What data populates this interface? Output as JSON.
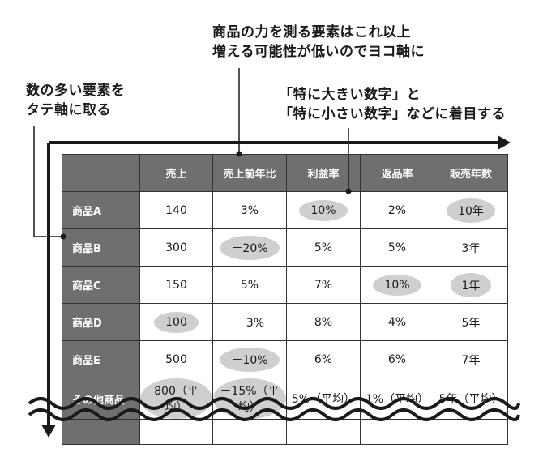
{
  "annotations": {
    "top": [
      "商品の力を測る要素はこれ以上",
      "増える可能性が低いのでヨコ軸に"
    ],
    "left": [
      "数の多い要素を",
      "タテ軸に取る"
    ],
    "right": [
      "「特に大きい数字」と",
      "「特に小さい数字」などに着目する"
    ]
  },
  "table": {
    "columns": [
      "売上",
      "売上前年比",
      "利益率",
      "返品率",
      "販売年数"
    ],
    "rows": [
      {
        "label": "商品A",
        "cells": [
          "140",
          "3%",
          "10%",
          "2%",
          "10年"
        ],
        "highlight": [
          false,
          false,
          true,
          false,
          true
        ]
      },
      {
        "label": "商品B",
        "cells": [
          "300",
          "－20%",
          "5%",
          "5%",
          "3年"
        ],
        "highlight": [
          false,
          true,
          false,
          false,
          false
        ]
      },
      {
        "label": "商品C",
        "cells": [
          "150",
          "5%",
          "7%",
          "10%",
          "1年"
        ],
        "highlight": [
          false,
          false,
          false,
          true,
          true
        ]
      },
      {
        "label": "商品D",
        "cells": [
          "100",
          "－3%",
          "8%",
          "4%",
          "5年"
        ],
        "highlight": [
          true,
          false,
          false,
          false,
          false
        ]
      },
      {
        "label": "商品E",
        "cells": [
          "500",
          "－10%",
          "6%",
          "6%",
          "7年"
        ],
        "highlight": [
          false,
          true,
          false,
          false,
          false
        ]
      },
      {
        "label": "その他商品",
        "cells": [
          "800（平均）",
          "－15%（平均）",
          "5%（平均）",
          "1%（平均）",
          "5年（平均）"
        ],
        "highlight": [
          true,
          true,
          false,
          false,
          false
        ]
      }
    ]
  },
  "colors": {
    "header_bg": "#6f6f6f",
    "highlight": "#cfcfcf",
    "arrow": "#1a1a1a"
  }
}
